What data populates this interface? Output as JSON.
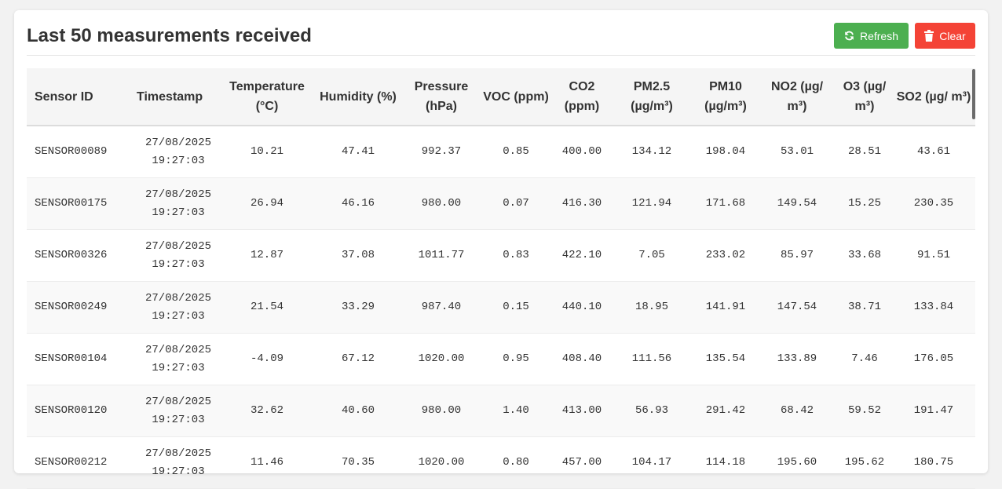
{
  "header": {
    "title": "Last 50 measurements received",
    "refresh_label": "Refresh",
    "clear_label": "Clear"
  },
  "colors": {
    "refresh": "#4caf50",
    "clear": "#f44336"
  },
  "icons": {
    "refresh": "refresh-icon",
    "clear": "trash-icon"
  },
  "table": {
    "columns": [
      "Sensor ID",
      "Timestamp",
      "Temperature (°C)",
      "Humidity (%)",
      "Pressure (hPa)",
      "VOC (ppm)",
      "CO2 (ppm)",
      "PM2.5 (µg/m³)",
      "PM10 (µg/m³)",
      "NO2 (µg/ m³)",
      "O3 (µg/ m³)",
      "SO2 (µg/ m³)"
    ],
    "rows": [
      [
        "SENSOR00089",
        "27/08/2025 19:27:03",
        "10.21",
        "47.41",
        "992.37",
        "0.85",
        "400.00",
        "134.12",
        "198.04",
        "53.01",
        "28.51",
        "43.61"
      ],
      [
        "SENSOR00175",
        "27/08/2025 19:27:03",
        "26.94",
        "46.16",
        "980.00",
        "0.07",
        "416.30",
        "121.94",
        "171.68",
        "149.54",
        "15.25",
        "230.35"
      ],
      [
        "SENSOR00326",
        "27/08/2025 19:27:03",
        "12.87",
        "37.08",
        "1011.77",
        "0.83",
        "422.10",
        "7.05",
        "233.02",
        "85.97",
        "33.68",
        "91.51"
      ],
      [
        "SENSOR00249",
        "27/08/2025 19:27:03",
        "21.54",
        "33.29",
        "987.40",
        "0.15",
        "440.10",
        "18.95",
        "141.91",
        "147.54",
        "38.71",
        "133.84"
      ],
      [
        "SENSOR00104",
        "27/08/2025 19:27:03",
        "-4.09",
        "67.12",
        "1020.00",
        "0.95",
        "408.40",
        "111.56",
        "135.54",
        "133.89",
        "7.46",
        "176.05"
      ],
      [
        "SENSOR00120",
        "27/08/2025 19:27:03",
        "32.62",
        "40.60",
        "980.00",
        "1.40",
        "413.00",
        "56.93",
        "291.42",
        "68.42",
        "59.52",
        "191.47"
      ],
      [
        "SENSOR00212",
        "27/08/2025 19:27:03",
        "11.46",
        "70.35",
        "1020.00",
        "0.80",
        "457.00",
        "104.17",
        "114.18",
        "195.60",
        "195.62",
        "180.75"
      ]
    ]
  }
}
